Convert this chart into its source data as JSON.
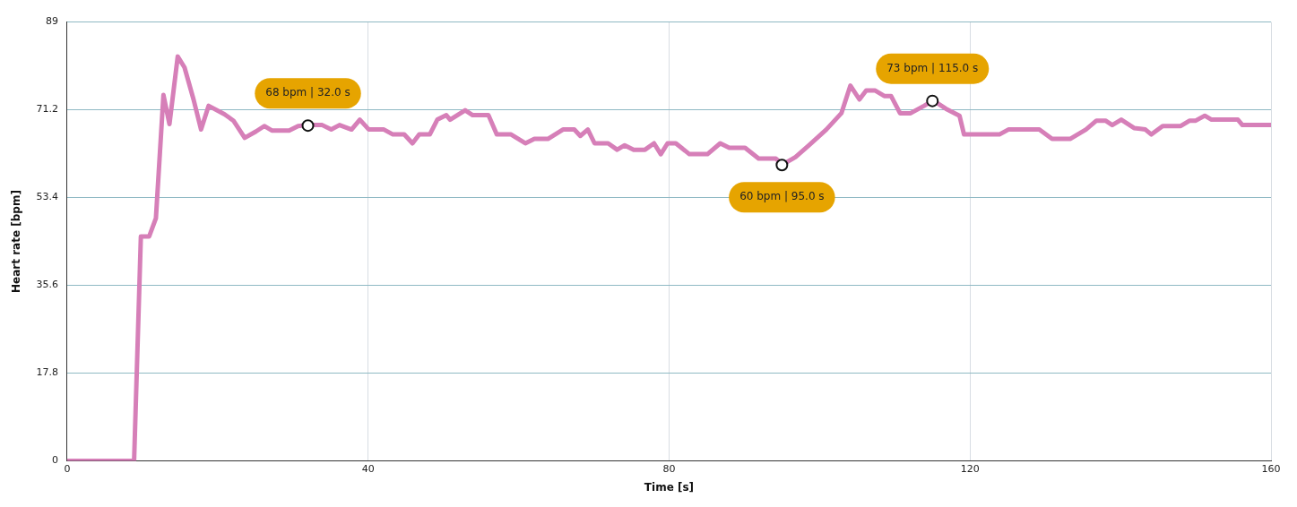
{
  "chart_data": {
    "type": "line",
    "xlabel": "Time [s]",
    "ylabel": "Heart rate [bpm]",
    "xlim": [
      0,
      160
    ],
    "xticks": [
      0,
      40,
      80,
      120,
      160
    ],
    "ylim": [
      0,
      89
    ],
    "yticks": [
      0,
      17.8,
      35.6,
      53.4,
      71.2,
      89
    ],
    "grid": true,
    "legend": false,
    "marker": "none",
    "line_style": "solid",
    "series": [
      {
        "type": "line",
        "color": "#d67fb8",
        "x": [
          0,
          8.9,
          9.8,
          10.9,
          11.8,
          12.8,
          13.6,
          14.7,
          15.6,
          16.8,
          17.8,
          18.8,
          20.9,
          22.1,
          23.6,
          25.1,
          26.2,
          27.2,
          29.5,
          30.7,
          31.9,
          33.9,
          35.1,
          36.2,
          37.8,
          38.9,
          40.1,
          42.1,
          43.3,
          44.8,
          45.9,
          46.8,
          48.2,
          49.2,
          50.4,
          50.9,
          52.9,
          53.9,
          56,
          57.1,
          59,
          60.9,
          62.1,
          63.9,
          65.9,
          67.4,
          68.2,
          69.2,
          70.1,
          71.9,
          73.1,
          74.1,
          75.3,
          76.8,
          78,
          78.9,
          79.8,
          80.9,
          82.7,
          85.1,
          86.8,
          88,
          90.1,
          91.9,
          94.2,
          95.1,
          96.8,
          98.6,
          100.9,
          102.9,
          104.1,
          105.3,
          106.2,
          107.4,
          108.6,
          109.5,
          110.7,
          112.1,
          113.9,
          115.1,
          116.8,
          118.6,
          119.2,
          123.9,
          125.1,
          129.2,
          130.9,
          133.3,
          135.4,
          136.8,
          138,
          138.9,
          140.1,
          141.8,
          143.3,
          144.1,
          145.6,
          148,
          149.2,
          150,
          151.2,
          152.1,
          155.6,
          156.2,
          160
        ],
        "values": [
          0,
          0,
          45.5,
          45.5,
          49.2,
          74.2,
          68.3,
          82,
          79.8,
          73.3,
          67.2,
          72,
          70.3,
          69,
          65.5,
          66.8,
          67.9,
          67,
          67,
          67.9,
          68.1,
          68.1,
          67.2,
          68.1,
          67.2,
          69.2,
          67.2,
          67.2,
          66.2,
          66.2,
          64.4,
          66.2,
          66.2,
          69.2,
          70.1,
          69.2,
          71.1,
          70.1,
          70.1,
          66.2,
          66.2,
          64.4,
          65.3,
          65.3,
          67.2,
          67.2,
          65.9,
          67.2,
          64.4,
          64.4,
          63.1,
          64,
          63.1,
          63.1,
          64.4,
          62.2,
          64.4,
          64.4,
          62.2,
          62.2,
          64.4,
          63.5,
          63.5,
          61.3,
          61.3,
          60.1,
          61.6,
          64,
          67.2,
          70.5,
          76.1,
          73.3,
          75.1,
          75.1,
          74,
          74,
          70.5,
          70.5,
          72,
          73.1,
          71.4,
          70,
          66.2,
          66.2,
          67.2,
          67.2,
          65.3,
          65.3,
          67.2,
          69,
          69,
          68.1,
          69.2,
          67.5,
          67.2,
          66.2,
          67.9,
          67.9,
          69,
          69,
          70,
          69.2,
          69.2,
          68.1,
          68.1
        ]
      },
      {
        "type": "scatter",
        "color": "#ffffff",
        "marker": "circle",
        "x": [
          32,
          95,
          115
        ],
        "values": [
          68,
          60,
          73
        ],
        "value_labels": [
          "68 bpm | 32.0 s",
          "60 bpm | 95.0 s",
          "73 bpm | 115.0 s"
        ]
      }
    ]
  }
}
